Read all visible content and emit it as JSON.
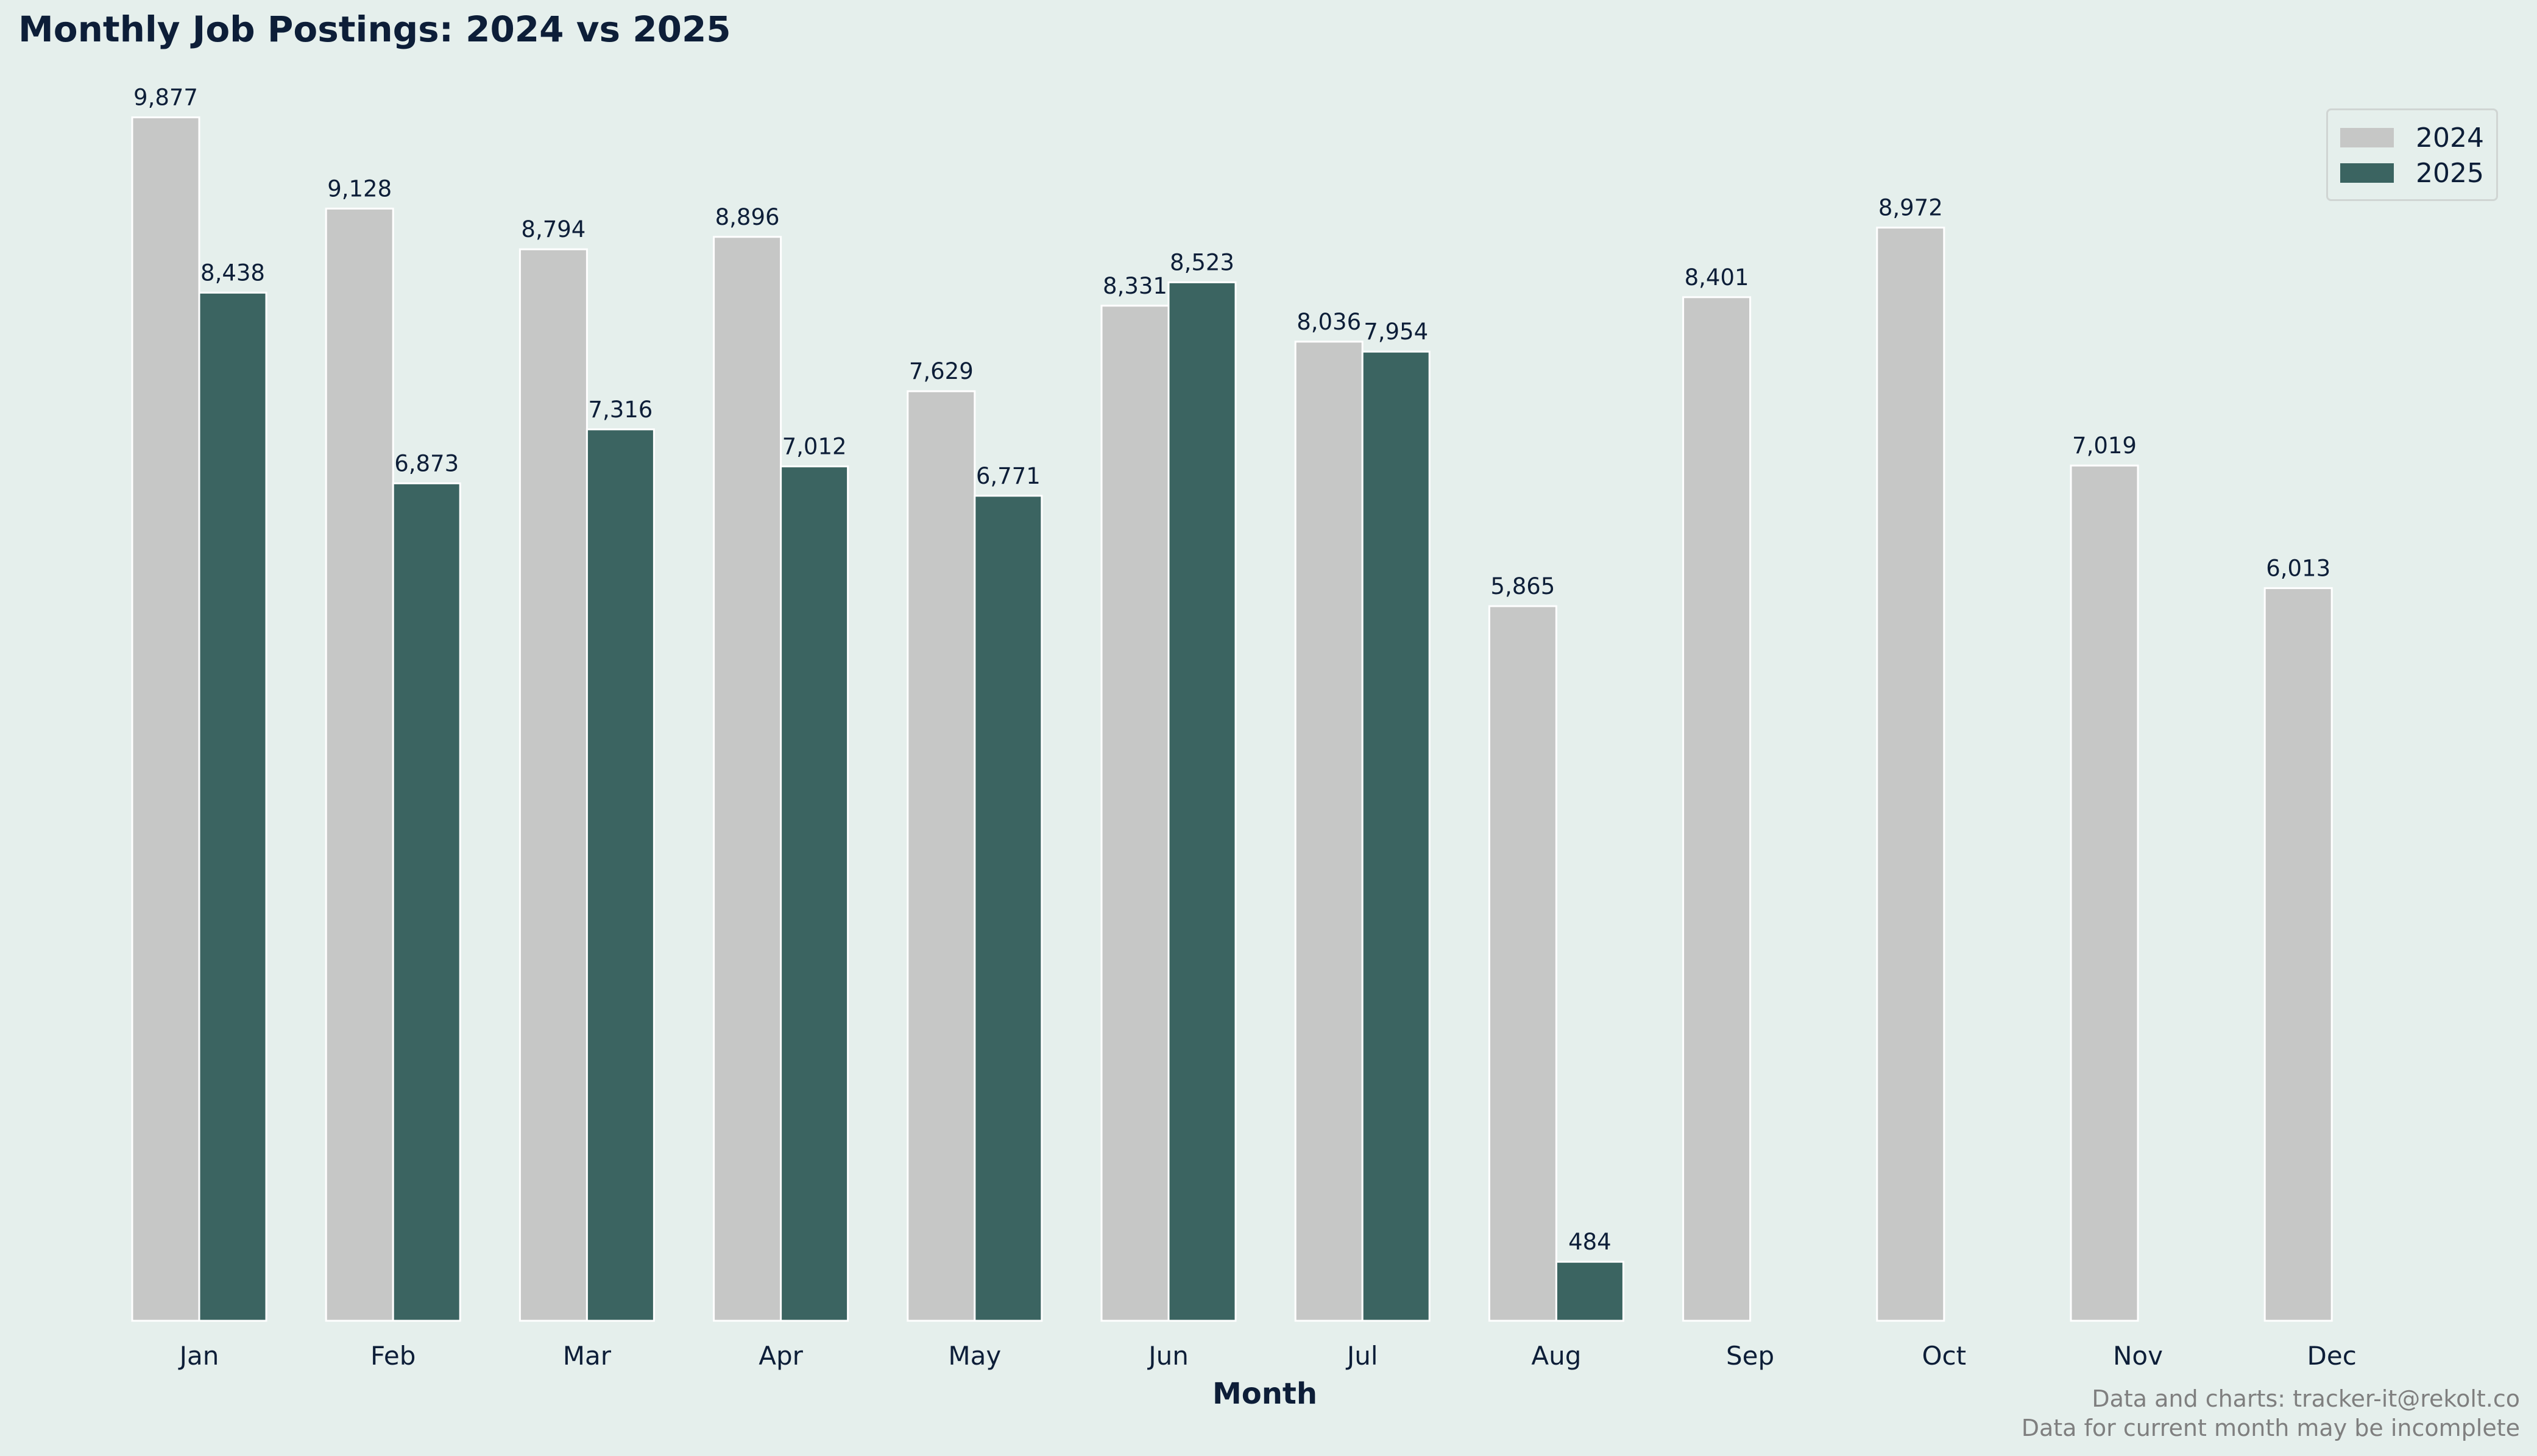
{
  "chart_data": {
    "type": "bar",
    "title": "Monthly Job Postings: 2024 vs 2025",
    "xlabel": "Month",
    "ylabel": "",
    "categories": [
      "Jan",
      "Feb",
      "Mar",
      "Apr",
      "May",
      "Jun",
      "Jul",
      "Aug",
      "Sep",
      "Oct",
      "Nov",
      "Dec"
    ],
    "series": [
      {
        "name": "2024",
        "color": "#c6c7c6",
        "values": [
          9877,
          9128,
          8794,
          8896,
          7629,
          8331,
          8036,
          5865,
          8401,
          8972,
          7019,
          6013
        ],
        "labels": [
          "9,877",
          "9,128",
          "8,794",
          "8,896",
          "7,629",
          "8,331",
          "8,036",
          "5,865",
          "8,401",
          "8,972",
          "7,019",
          "6,013"
        ]
      },
      {
        "name": "2025",
        "color": "#3b6461",
        "values": [
          8438,
          6873,
          7316,
          7012,
          6771,
          8523,
          7954,
          484,
          0,
          0,
          0,
          0
        ],
        "labels": [
          "8,438",
          "6,873",
          "7,316",
          "7,012",
          "6,771",
          "8,523",
          "7,954",
          "484",
          "",
          "",
          "",
          ""
        ]
      }
    ],
    "ylim": [
      0,
      10400
    ],
    "grid": false,
    "legend": "top-right"
  },
  "footnote": {
    "line1": "Data and charts: tracker-it@rekolt.co",
    "line2": "Data for current month may be incomplete"
  }
}
